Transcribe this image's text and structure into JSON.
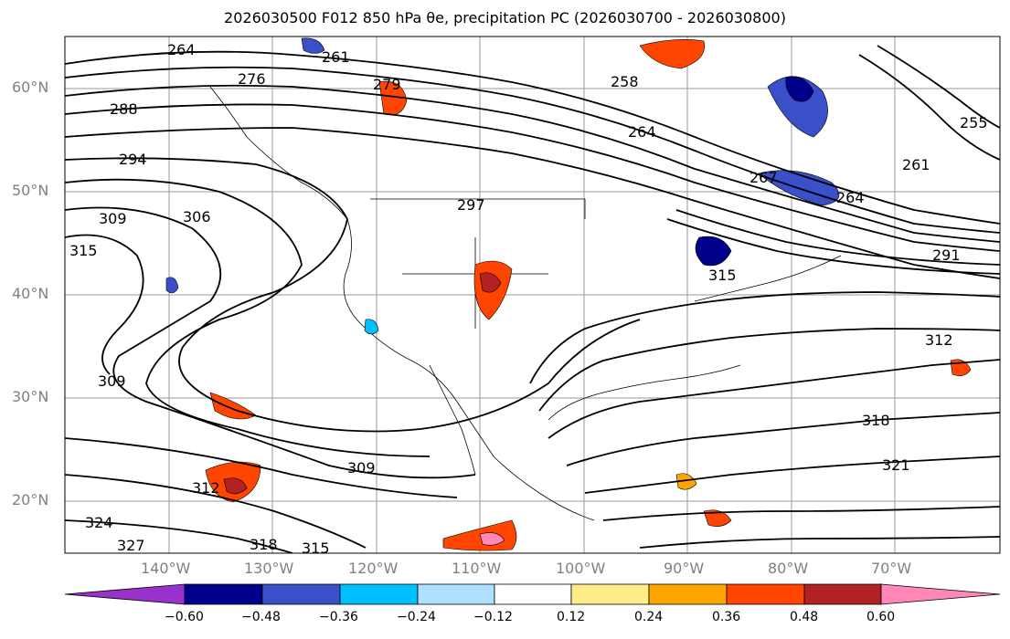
{
  "title": "2026030500 F012 850 hPa θe, precipitation PC (2026030700 - 2026030800)",
  "lat_ticks": [
    "60°N",
    "50°N",
    "40°N",
    "30°N",
    "20°N"
  ],
  "lon_ticks": [
    "140°W",
    "130°W",
    "120°W",
    "110°W",
    "100°W",
    "90°W",
    "80°W",
    "70°W"
  ],
  "colorbar": {
    "tick_labels": [
      "−0.60",
      "−0.48",
      "−0.36",
      "−0.24",
      "−0.12",
      "0.12",
      "0.24",
      "0.36",
      "0.48",
      "0.60"
    ],
    "colors": [
      "#9932cc",
      "#00008b",
      "#3a50c8",
      "#00bfff",
      "#b0e0ff",
      "#ffffff",
      "#ffee88",
      "#ffa500",
      "#ff4500",
      "#b22222",
      "#ff88b8"
    ]
  },
  "contour_labels": [
    "264",
    "261",
    "258",
    "264",
    "267",
    "264",
    "261",
    "255",
    "288",
    "294",
    "306",
    "309",
    "315",
    "297",
    "315",
    "291",
    "312",
    "318",
    "309",
    "321",
    "324",
    "327",
    "318",
    "315",
    "312",
    "309",
    "276",
    "279"
  ],
  "map": {
    "projection": "PlateCarree",
    "lon_range": [
      -150,
      -59
    ],
    "lat_range": [
      15,
      65
    ],
    "field": "850 hPa theta-e contours (K) with shaded precipitation PC",
    "shaded_colors": {
      "neg_strong": "#00008b",
      "neg": "#3a50c8",
      "neg_light": "#00bfff",
      "pos_light": "#ffee88",
      "pos": "#ffa500",
      "pos_strong": "#ff4500",
      "pos_max": "#b22222"
    }
  }
}
